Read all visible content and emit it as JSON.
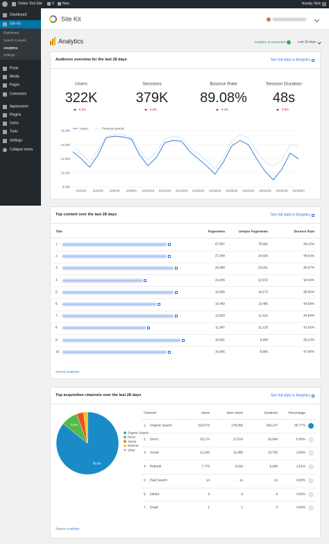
{
  "admin_bar": {
    "site": "Online Test Site",
    "comments": "0",
    "new": "New",
    "howdy": "Howdy, Nick"
  },
  "menu": {
    "top": [
      "Dashboard",
      "Site Kit"
    ],
    "sub": [
      "Dashboard",
      "Search Console",
      "Analytics",
      "Settings"
    ],
    "rest": [
      "Posts",
      "Media",
      "Pages",
      "Comments",
      "Appearance",
      "Plugins",
      "Users",
      "Tools",
      "Settings",
      "Collapse menu"
    ]
  },
  "header": {
    "brand": "Site Kit"
  },
  "page": {
    "title": "Analytics",
    "status": "Analytics is connected",
    "range": "Last 28 days"
  },
  "audience": {
    "title": "Audience overview for the last 28 days",
    "link": "See full stats in Analytics",
    "metrics": [
      {
        "label": "Users",
        "value": "322K",
        "change": "5.2%"
      },
      {
        "label": "Sessions",
        "value": "379K",
        "change": "5.5%"
      },
      {
        "label": "Bounce Rate",
        "value": "89.08%",
        "change": "0.4%"
      },
      {
        "label": "Session Duration",
        "value": "48s",
        "change": "0.6%"
      }
    ]
  },
  "chart_data": [
    {
      "type": "line",
      "categories": [
        null,
        "10/2/20",
        null,
        "10/4/20",
        null,
        "10/6/20",
        null,
        "10/8/20",
        null,
        "10/10/20",
        null,
        "10/12/20",
        null,
        "10/14/20",
        null,
        "10/16/20",
        null,
        "10/18/20",
        null,
        "10/20/20",
        null,
        "10/22/20",
        null,
        "10/24/20",
        null,
        "10/26/20",
        null,
        "10/28/20"
      ],
      "series": [
        {
          "name": "Users",
          "color": "#4a86d6",
          "values": [
            13000,
            12000,
            10800,
            12500,
            15000,
            15200,
            15100,
            14800,
            12500,
            11000,
            12200,
            14300,
            14600,
            14500,
            13000,
            12000,
            11000,
            9800,
            11500,
            13800,
            14600,
            14000,
            12000,
            10200,
            9000,
            10500,
            12800,
            12000
          ]
        },
        {
          "name": "Previous period",
          "color": "#a9c8ef",
          "values": [
            13800,
            12800,
            11500,
            13200,
            15200,
            15500,
            15400,
            15000,
            13200,
            11800,
            13000,
            14800,
            15200,
            15000,
            13600,
            12700,
            11700,
            10600,
            12200,
            14400,
            15500,
            15000,
            13000,
            11500,
            11000,
            11800,
            14000,
            13800
          ]
        }
      ],
      "ylim": [
        8000,
        16000
      ],
      "yticks": [
        {
          "value": 8000,
          "label": "8,000"
        },
        {
          "value": 10000,
          "label": "10,000"
        },
        {
          "value": 12000,
          "label": "12,000"
        },
        {
          "value": 14000,
          "label": "14,000"
        },
        {
          "value": 16000,
          "label": "16,000"
        }
      ],
      "grid": true
    },
    {
      "type": "pie",
      "categories": [
        "Organic Search",
        "Direct",
        "Social",
        "Referral",
        "Other"
      ],
      "values": [
        85.77,
        8.56,
        3.65,
        2.01,
        0.01
      ],
      "value_labels": [
        "85.8%",
        "8.6%",
        null,
        null,
        null
      ],
      "colors": [
        "#1a8bc6",
        "#55b947",
        "#e9541f",
        "#f4c20d",
        "#bdbdbd"
      ]
    }
  ],
  "top_content": {
    "title": "Top content over the last 28 days",
    "link": "See full stats in Analytics",
    "columns": [
      "Title",
      "Pageviews",
      "Unique Pageviews",
      "Bounce Rate"
    ],
    "rows": [
      [
        "1.",
        "87,997",
        "78,991",
        "89.12%"
      ],
      [
        "2.",
        "27,348",
        "24,630",
        "88.63%"
      ],
      [
        "3.",
        "25,068",
        "23,031",
        "88.87%"
      ],
      [
        "4.",
        "24,306",
        "22,972",
        "94.50%"
      ],
      [
        "5.",
        "19,900",
        "18,173",
        "88.82%"
      ],
      [
        "6.",
        "15,450",
        "13,485",
        "84.59%"
      ],
      [
        "7.",
        "12,503",
        "11,610",
        "84.84%"
      ],
      [
        "8.",
        "11,997",
        "11,125",
        "91.63%"
      ],
      [
        "9.",
        "10,931",
        "9,906",
        "85.23%"
      ],
      [
        "10.",
        "10,065",
        "8,895",
        "87.06%"
      ]
    ],
    "source_label": "Source:",
    "source": "Analytics"
  },
  "acquisition": {
    "title": "Top acquisition channels over the last 28 days",
    "link": "See full stats in Analytics",
    "columns": [
      "Channel",
      "Users",
      "New Users",
      "Sessions",
      "Percentage"
    ],
    "rows": [
      [
        "1.",
        "Organic Search",
        "323,576",
        "278,665",
        "269,147",
        "85.77%"
      ],
      [
        "2.",
        "Direct",
        "33,174",
        "27,814",
        "26,849",
        "8.56%"
      ],
      [
        "3.",
        "Social",
        "12,105",
        "11,869",
        "10,726",
        "3.65%"
      ],
      [
        "4.",
        "Referral",
        "7,775",
        "6,520",
        "5,980",
        "2.01%"
      ],
      [
        "5.",
        "Paid Search",
        "14",
        "14",
        "14",
        "0.00%"
      ],
      [
        "6.",
        "(other)",
        "9",
        "8",
        "8",
        "0.00%"
      ],
      [
        "7.",
        "Email",
        "1",
        "1",
        "0",
        "0.00%"
      ]
    ],
    "source_label": "Source:",
    "source": "Analytics"
  }
}
